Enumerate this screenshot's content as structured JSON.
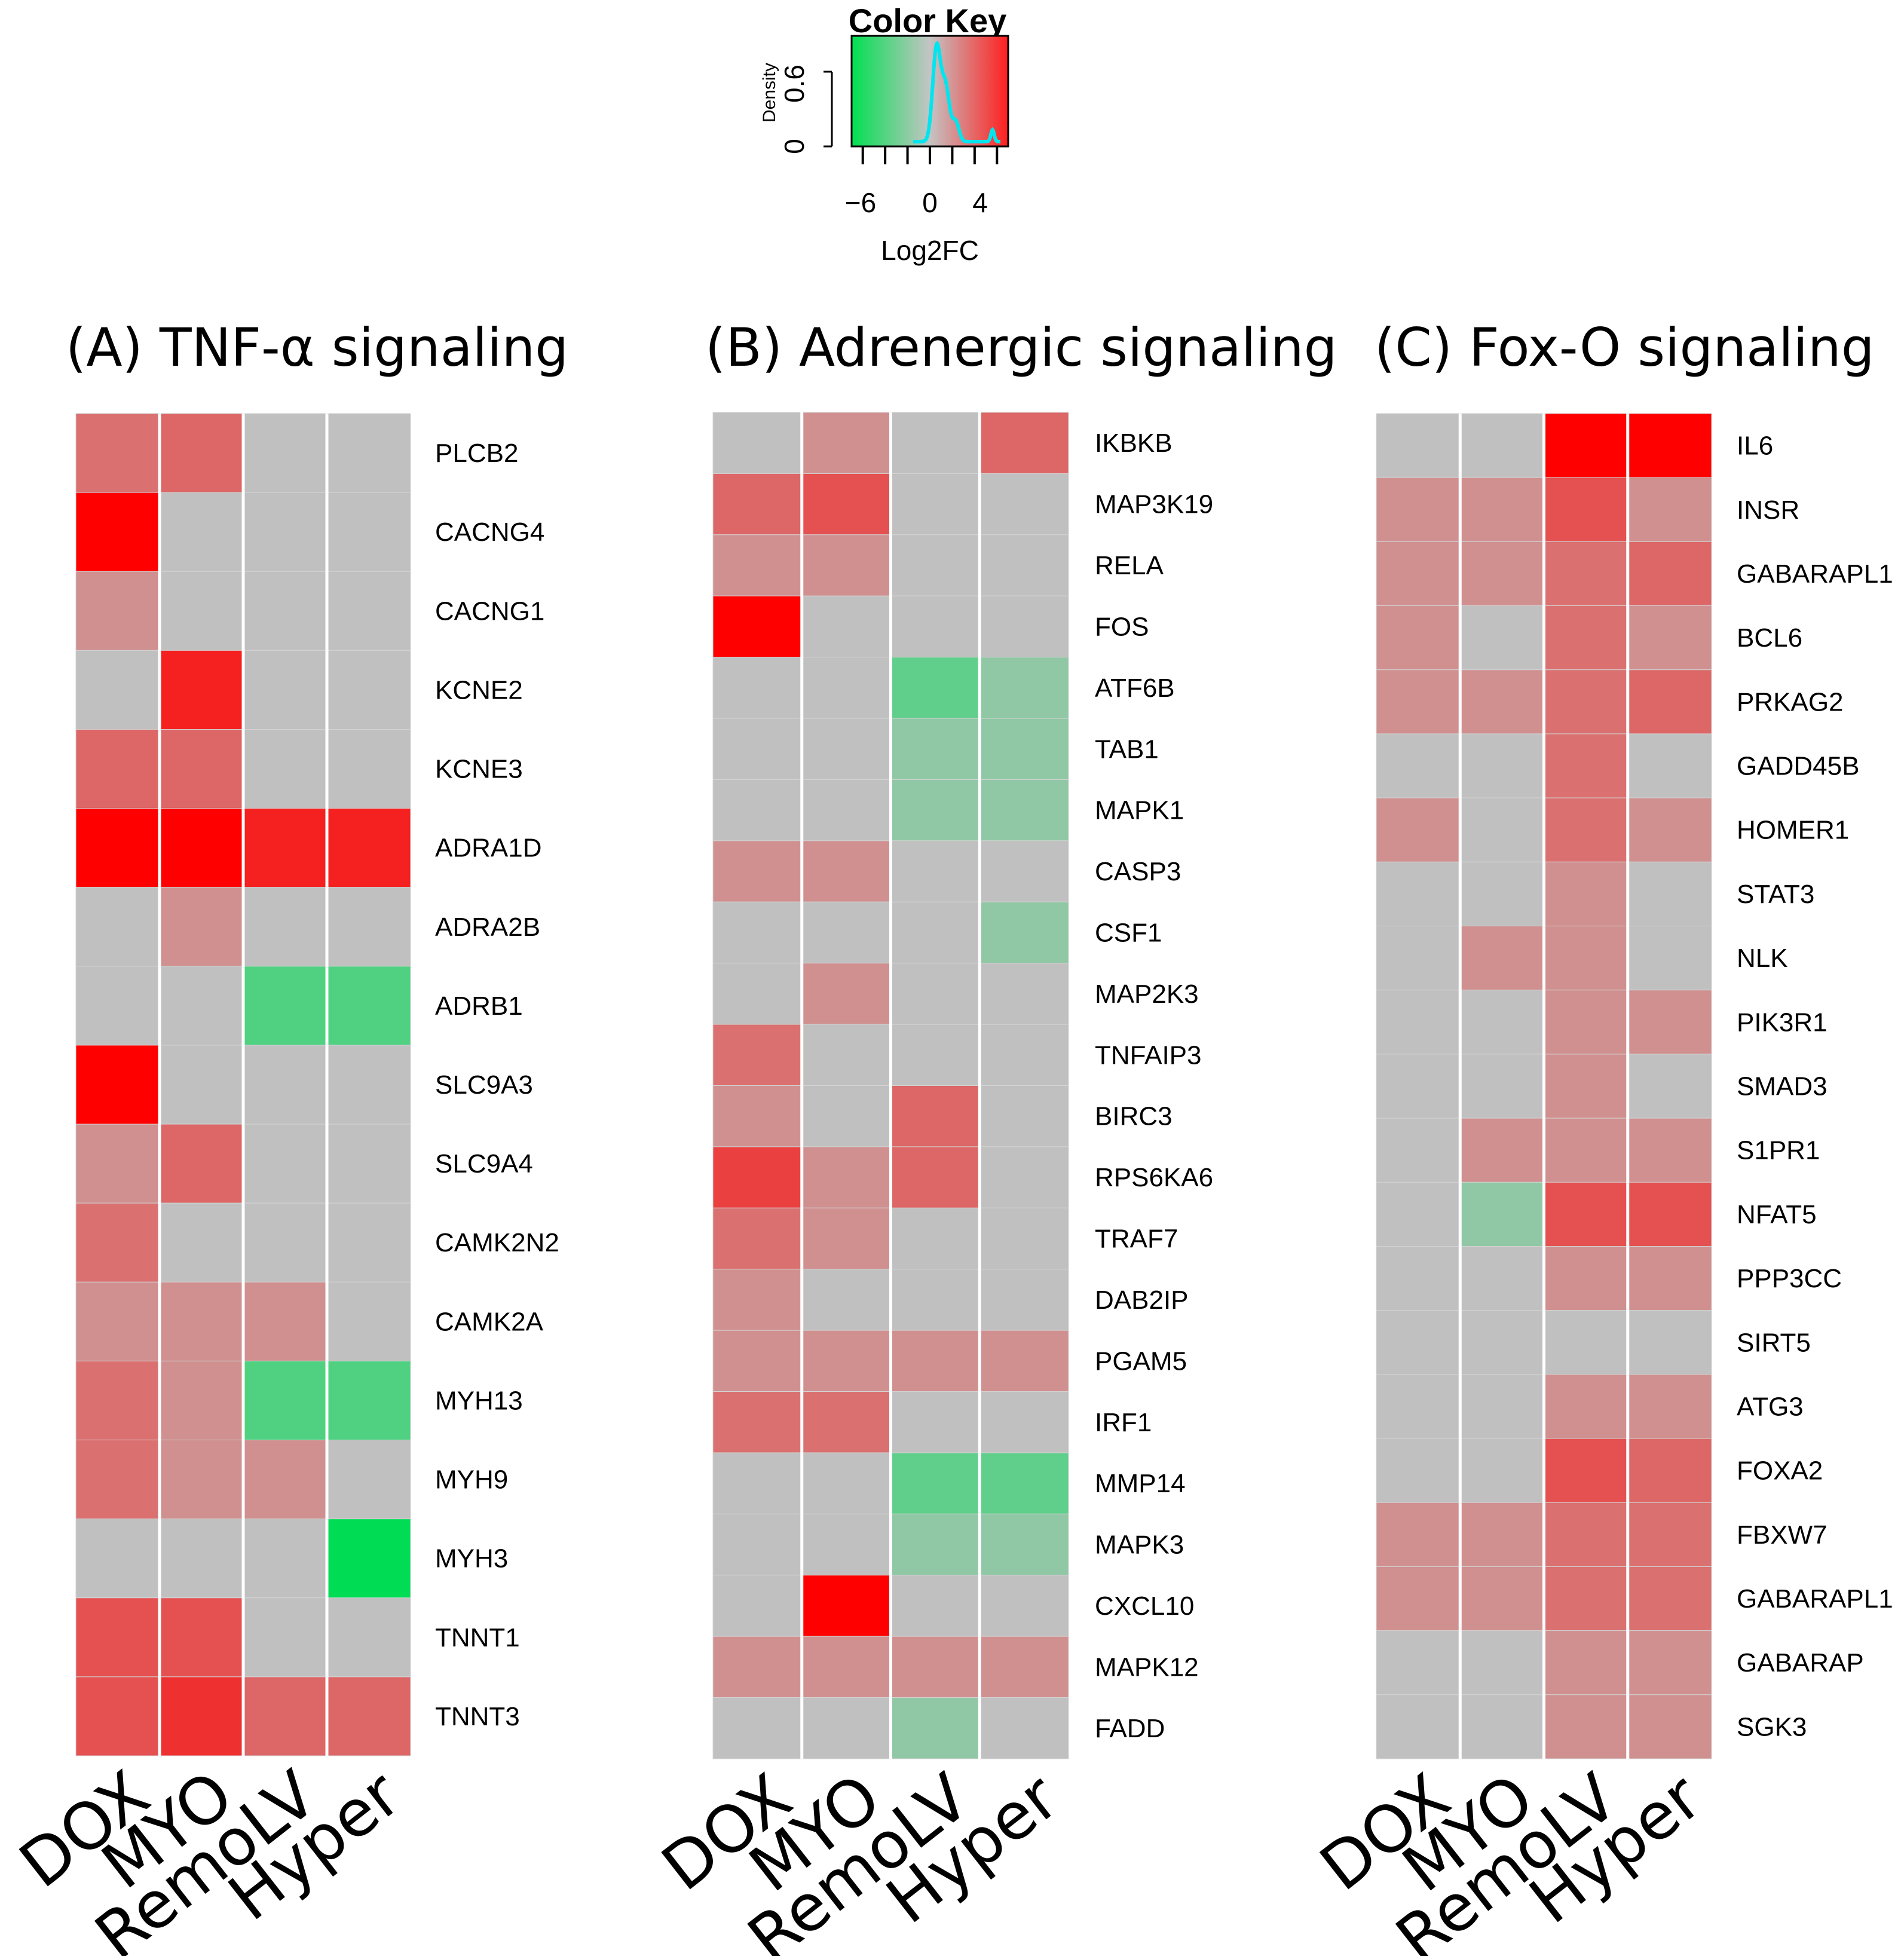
{
  "chart_data": [
    {
      "type": "heatmap",
      "title": "(A) TNF-α signaling",
      "columns": [
        "DOX",
        "MYO",
        "RemoLV",
        "Hyper"
      ],
      "rows": [
        "PLCB2",
        "CACNG4",
        "CACNG1",
        "KCNE2",
        "KCNE3",
        "ADRA1D",
        "ADRA2B",
        "ADRB1",
        "SLC9A3",
        "SLC9A4",
        "CAMK2N2",
        "CAMK2A",
        "MYH13",
        "MYH9",
        "MYH3",
        "TNNT1",
        "TNNT3"
      ],
      "values": [
        [
          2.5,
          2.8,
          0,
          0
        ],
        [
          6.0,
          0,
          0,
          0
        ],
        [
          1.5,
          0,
          0,
          0
        ],
        [
          0,
          5.0,
          0,
          0
        ],
        [
          2.8,
          2.8,
          0,
          0
        ],
        [
          6.0,
          6.0,
          5.0,
          5.0
        ],
        [
          0,
          1.5,
          0,
          0
        ],
        [
          0,
          0,
          -3.5,
          -3.5
        ],
        [
          6.0,
          0,
          0,
          0
        ],
        [
          1.5,
          2.8,
          0,
          0
        ],
        [
          2.5,
          0,
          0,
          0
        ],
        [
          1.5,
          1.5,
          1.5,
          0
        ],
        [
          2.5,
          1.5,
          -3.5,
          -3.5
        ],
        [
          2.5,
          1.5,
          1.5,
          0
        ],
        [
          0,
          0,
          0,
          -6.0
        ],
        [
          3.5,
          3.5,
          0,
          0
        ],
        [
          3.5,
          4.5,
          2.8,
          2.8
        ]
      ]
    },
    {
      "type": "heatmap",
      "title": "(B) Adrenergic signaling",
      "columns": [
        "DOX",
        "MYO",
        "RemoLV",
        "Hyper"
      ],
      "rows": [
        "IKBKB",
        "MAP3K19",
        "RELA",
        "FOS",
        "ATF6B",
        "TAB1",
        "MAPK1",
        "CASP3",
        "CSF1",
        "MAP2K3",
        "TNFAIP3",
        "BIRC3",
        "RPS6KA6",
        "TRAF7",
        "DAB2IP",
        "PGAM5",
        "IRF1",
        "MMP14",
        "MAPK3",
        "CXCL10",
        "MAPK12",
        "FADD"
      ],
      "values": [
        [
          0,
          1.5,
          0,
          2.8
        ],
        [
          2.8,
          3.5,
          0,
          0
        ],
        [
          1.5,
          1.5,
          0,
          0
        ],
        [
          6.0,
          0,
          0,
          0
        ],
        [
          0,
          0,
          -3.0,
          -1.5
        ],
        [
          0,
          0,
          -1.5,
          -1.5
        ],
        [
          0,
          0,
          -1.5,
          -1.5
        ],
        [
          1.5,
          1.5,
          0,
          0
        ],
        [
          0,
          0,
          0,
          -1.5
        ],
        [
          0,
          1.5,
          0,
          0
        ],
        [
          2.5,
          0,
          0,
          0
        ],
        [
          1.5,
          0,
          2.8,
          0
        ],
        [
          4.0,
          1.5,
          2.8,
          0
        ],
        [
          2.5,
          1.5,
          0,
          0
        ],
        [
          1.5,
          0,
          0,
          0
        ],
        [
          1.5,
          1.5,
          1.5,
          1.5
        ],
        [
          2.5,
          2.5,
          0,
          0
        ],
        [
          0,
          0,
          -3.0,
          -3.0
        ],
        [
          0,
          0,
          -1.5,
          -1.5
        ],
        [
          0,
          6.0,
          0,
          0
        ],
        [
          1.5,
          1.5,
          1.5,
          1.5
        ],
        [
          0,
          0,
          -1.5,
          0
        ]
      ]
    },
    {
      "type": "heatmap",
      "title": "(C) Fox-O signaling",
      "columns": [
        "DOX",
        "MYO",
        "RemoLV",
        "Hyper"
      ],
      "rows": [
        "IL6",
        "INSR",
        "GABARAPL1",
        "BCL6",
        "PRKAG2",
        "GADD45B",
        "HOMER1",
        "STAT3",
        "NLK",
        "PIK3R1",
        "SMAD3",
        "S1PR1",
        "NFAT5",
        "PPP3CC",
        "SIRT5",
        "ATG3",
        "FOXA2",
        "FBXW7",
        "GABARAPL1",
        "GABARAP",
        "SGK3"
      ],
      "values": [
        [
          0,
          0,
          6.0,
          6.0
        ],
        [
          1.5,
          1.5,
          3.5,
          1.5
        ],
        [
          1.5,
          1.5,
          2.5,
          2.8
        ],
        [
          1.5,
          0,
          2.5,
          1.5
        ],
        [
          1.5,
          1.5,
          2.5,
          2.8
        ],
        [
          0,
          0,
          2.5,
          0
        ],
        [
          1.5,
          0,
          2.5,
          1.5
        ],
        [
          0,
          0,
          1.5,
          0
        ],
        [
          0,
          1.5,
          1.5,
          0
        ],
        [
          0,
          0,
          1.5,
          1.5
        ],
        [
          0,
          0,
          1.5,
          0
        ],
        [
          0,
          1.5,
          1.5,
          1.5
        ],
        [
          0,
          -1.5,
          3.5,
          3.5
        ],
        [
          0,
          0,
          1.5,
          1.5
        ],
        [
          0,
          0,
          0,
          0
        ],
        [
          0,
          0,
          1.5,
          1.5
        ],
        [
          0,
          0,
          3.5,
          2.8
        ],
        [
          1.5,
          1.5,
          2.5,
          2.5
        ],
        [
          1.5,
          1.5,
          2.5,
          2.5
        ],
        [
          0,
          0,
          1.5,
          1.5
        ],
        [
          0,
          0,
          1.5,
          1.5
        ]
      ]
    }
  ],
  "color_key": {
    "title": "Color Key",
    "xlabel": "Log2FC",
    "ylabel": "Density",
    "xticks": [
      "−6",
      "0",
      "4"
    ],
    "yticks": [
      "0",
      "0.6"
    ],
    "range": [
      -7,
      7
    ],
    "colors": {
      "low": "#00dd55",
      "mid": "#c0c0c0",
      "high": "#ff0000",
      "density": "#00e5ee"
    }
  }
}
